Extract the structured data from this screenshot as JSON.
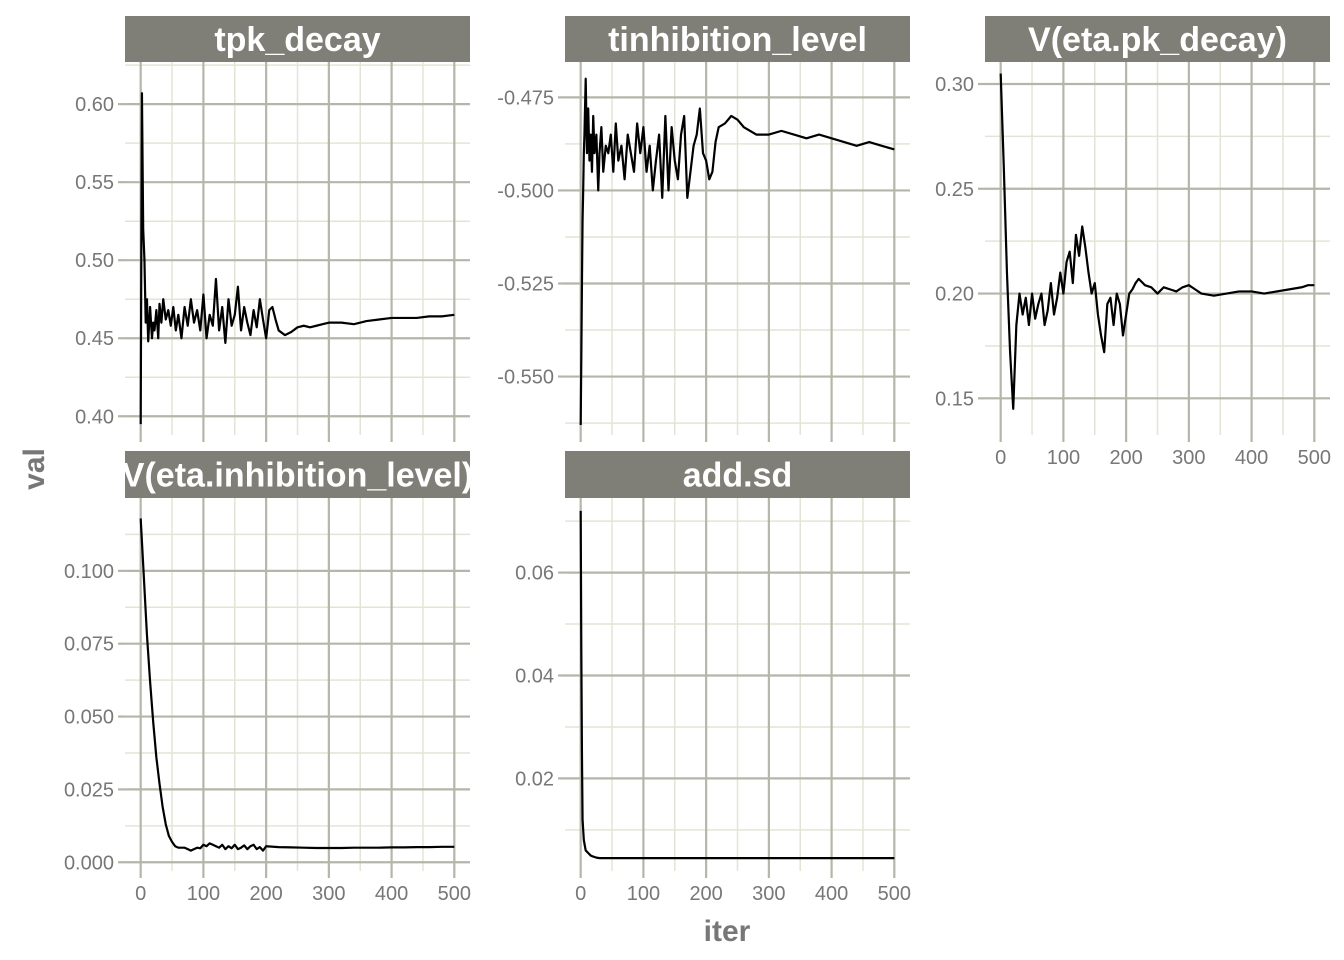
{
  "chart_data": {
    "type": "line",
    "xlabel": "iter",
    "ylabel": "val",
    "grid": true,
    "colors": {
      "strip_background": "#7f7f78",
      "strip_text": "#ffffff",
      "grid_major": "#b5b5a9",
      "grid_minor": "#e4e4d6",
      "tick_label": "#777777",
      "line": "#000000"
    },
    "x_ticks": [
      0,
      100,
      200,
      300,
      400,
      500
    ],
    "xlim": [
      -25,
      525
    ],
    "panels": [
      {
        "title": "tpk_decay",
        "ylim": [
          0.388,
          0.627
        ],
        "y_ticks": [
          0.4,
          0.45,
          0.5,
          0.55,
          0.6
        ],
        "y_tick_labels": [
          "0.40",
          "0.45",
          "0.50",
          "0.55",
          "0.60"
        ],
        "x": [
          0,
          2,
          4,
          6,
          8,
          10,
          12,
          15,
          18,
          20,
          22,
          25,
          28,
          30,
          33,
          36,
          40,
          44,
          48,
          52,
          56,
          60,
          65,
          70,
          75,
          80,
          85,
          90,
          95,
          100,
          105,
          110,
          115,
          120,
          125,
          130,
          135,
          140,
          145,
          150,
          155,
          160,
          165,
          170,
          175,
          180,
          185,
          190,
          195,
          200,
          205,
          210,
          215,
          220,
          230,
          240,
          250,
          260,
          270,
          280,
          290,
          300,
          320,
          340,
          360,
          380,
          400,
          420,
          440,
          460,
          480,
          500
        ],
        "y": [
          0.395,
          0.607,
          0.52,
          0.5,
          0.46,
          0.475,
          0.448,
          0.47,
          0.45,
          0.46,
          0.455,
          0.468,
          0.45,
          0.472,
          0.46,
          0.475,
          0.462,
          0.468,
          0.458,
          0.47,
          0.455,
          0.465,
          0.45,
          0.47,
          0.458,
          0.475,
          0.46,
          0.468,
          0.455,
          0.478,
          0.45,
          0.465,
          0.458,
          0.488,
          0.455,
          0.47,
          0.447,
          0.475,
          0.458,
          0.465,
          0.483,
          0.455,
          0.47,
          0.46,
          0.452,
          0.468,
          0.457,
          0.475,
          0.462,
          0.45,
          0.468,
          0.47,
          0.462,
          0.455,
          0.452,
          0.454,
          0.457,
          0.458,
          0.457,
          0.458,
          0.459,
          0.46,
          0.46,
          0.459,
          0.461,
          0.462,
          0.463,
          0.463,
          0.463,
          0.464,
          0.464,
          0.465
        ]
      },
      {
        "title": "tinhibition_level",
        "ylim": [
          -0.5657,
          -0.4655
        ],
        "y_ticks": [
          -0.55,
          -0.525,
          -0.5,
          -0.475
        ],
        "y_tick_labels": [
          "-0.550",
          "-0.525",
          "-0.500",
          "-0.475"
        ],
        "x": [
          0,
          1,
          2,
          3,
          4,
          5,
          6,
          8,
          10,
          12,
          14,
          16,
          18,
          20,
          22,
          25,
          28,
          30,
          33,
          36,
          40,
          44,
          48,
          52,
          56,
          60,
          65,
          70,
          75,
          80,
          85,
          90,
          95,
          100,
          105,
          110,
          115,
          120,
          125,
          130,
          135,
          140,
          145,
          150,
          155,
          160,
          165,
          170,
          175,
          180,
          185,
          190,
          195,
          200,
          205,
          210,
          215,
          220,
          230,
          240,
          250,
          260,
          280,
          300,
          320,
          340,
          360,
          380,
          400,
          420,
          440,
          460,
          480,
          500
        ],
        "y": [
          -0.563,
          -0.545,
          -0.525,
          -0.508,
          -0.5,
          -0.49,
          -0.485,
          -0.47,
          -0.49,
          -0.478,
          -0.492,
          -0.485,
          -0.495,
          -0.48,
          -0.49,
          -0.485,
          -0.5,
          -0.49,
          -0.483,
          -0.495,
          -0.488,
          -0.49,
          -0.485,
          -0.495,
          -0.482,
          -0.492,
          -0.488,
          -0.497,
          -0.485,
          -0.49,
          -0.495,
          -0.482,
          -0.49,
          -0.483,
          -0.495,
          -0.488,
          -0.5,
          -0.492,
          -0.485,
          -0.502,
          -0.48,
          -0.5,
          -0.483,
          -0.492,
          -0.497,
          -0.485,
          -0.48,
          -0.502,
          -0.495,
          -0.488,
          -0.485,
          -0.478,
          -0.49,
          -0.492,
          -0.497,
          -0.495,
          -0.487,
          -0.483,
          -0.482,
          -0.48,
          -0.481,
          -0.483,
          -0.485,
          -0.485,
          -0.484,
          -0.485,
          -0.486,
          -0.485,
          -0.486,
          -0.487,
          -0.488,
          -0.487,
          -0.488,
          -0.489
        ]
      },
      {
        "title": "V(eta.pk_decay)",
        "ylim": [
          0.1325,
          0.3105
        ],
        "y_ticks": [
          0.15,
          0.2,
          0.25,
          0.3
        ],
        "y_tick_labels": [
          "0.15",
          "0.20",
          "0.25",
          "0.30"
        ],
        "x": [
          0,
          5,
          10,
          15,
          20,
          25,
          30,
          35,
          40,
          45,
          50,
          55,
          60,
          65,
          70,
          75,
          80,
          85,
          90,
          95,
          100,
          105,
          110,
          115,
          120,
          125,
          130,
          135,
          140,
          145,
          150,
          155,
          160,
          165,
          170,
          175,
          180,
          185,
          190,
          195,
          200,
          205,
          210,
          215,
          220,
          230,
          240,
          250,
          260,
          270,
          280,
          290,
          300,
          310,
          320,
          340,
          360,
          380,
          400,
          420,
          440,
          460,
          480,
          490,
          500
        ],
        "y": [
          0.305,
          0.26,
          0.21,
          0.172,
          0.145,
          0.185,
          0.2,
          0.19,
          0.198,
          0.185,
          0.2,
          0.188,
          0.195,
          0.2,
          0.185,
          0.192,
          0.205,
          0.19,
          0.198,
          0.21,
          0.2,
          0.215,
          0.22,
          0.205,
          0.228,
          0.218,
          0.232,
          0.222,
          0.21,
          0.2,
          0.205,
          0.19,
          0.18,
          0.172,
          0.195,
          0.198,
          0.185,
          0.2,
          0.195,
          0.18,
          0.19,
          0.2,
          0.202,
          0.205,
          0.207,
          0.204,
          0.203,
          0.2,
          0.203,
          0.202,
          0.201,
          0.203,
          0.204,
          0.202,
          0.2,
          0.199,
          0.2,
          0.201,
          0.201,
          0.2,
          0.201,
          0.202,
          0.203,
          0.204,
          0.204
        ]
      },
      {
        "title": "V(eta.inhibition_level)",
        "ylim": [
          -0.003,
          0.125
        ],
        "y_ticks": [
          0.0,
          0.025,
          0.05,
          0.075,
          0.1
        ],
        "y_tick_labels": [
          "0.000",
          "0.025",
          "0.050",
          "0.075",
          "0.100"
        ],
        "x": [
          0,
          5,
          10,
          15,
          20,
          25,
          30,
          35,
          40,
          45,
          50,
          55,
          60,
          65,
          70,
          75,
          80,
          85,
          90,
          95,
          100,
          105,
          110,
          115,
          120,
          125,
          130,
          135,
          140,
          145,
          150,
          155,
          160,
          165,
          170,
          175,
          180,
          185,
          190,
          195,
          200,
          220,
          240,
          260,
          280,
          300,
          320,
          340,
          360,
          380,
          400,
          420,
          440,
          460,
          480,
          500
        ],
        "y": [
          0.118,
          0.098,
          0.078,
          0.062,
          0.048,
          0.036,
          0.027,
          0.019,
          0.013,
          0.009,
          0.007,
          0.0055,
          0.005,
          0.005,
          0.005,
          0.0045,
          0.004,
          0.0045,
          0.005,
          0.0048,
          0.006,
          0.0055,
          0.0065,
          0.006,
          0.0055,
          0.005,
          0.006,
          0.0045,
          0.0055,
          0.0048,
          0.006,
          0.0045,
          0.005,
          0.0058,
          0.0045,
          0.0055,
          0.006,
          0.0045,
          0.0052,
          0.004,
          0.0055,
          0.0052,
          0.0051,
          0.005,
          0.0049,
          0.0049,
          0.0049,
          0.005,
          0.005,
          0.005,
          0.0051,
          0.0051,
          0.0052,
          0.0052,
          0.0053,
          0.0053
        ]
      },
      {
        "title": "add.sd",
        "ylim": [
          0.002,
          0.0745
        ],
        "y_ticks": [
          0.02,
          0.04,
          0.06
        ],
        "y_tick_labels": [
          "0.02",
          "0.04",
          "0.06"
        ],
        "x": [
          0,
          1,
          2,
          3,
          5,
          8,
          12,
          16,
          20,
          25,
          30,
          40,
          50,
          75,
          100,
          150,
          200,
          250,
          300,
          350,
          400,
          450,
          500
        ],
        "y": [
          0.072,
          0.045,
          0.025,
          0.012,
          0.008,
          0.006,
          0.0055,
          0.005,
          0.0048,
          0.0046,
          0.0045,
          0.0045,
          0.0045,
          0.0045,
          0.0045,
          0.0045,
          0.0045,
          0.0045,
          0.0045,
          0.0045,
          0.0045,
          0.0045,
          0.0045
        ]
      }
    ]
  }
}
